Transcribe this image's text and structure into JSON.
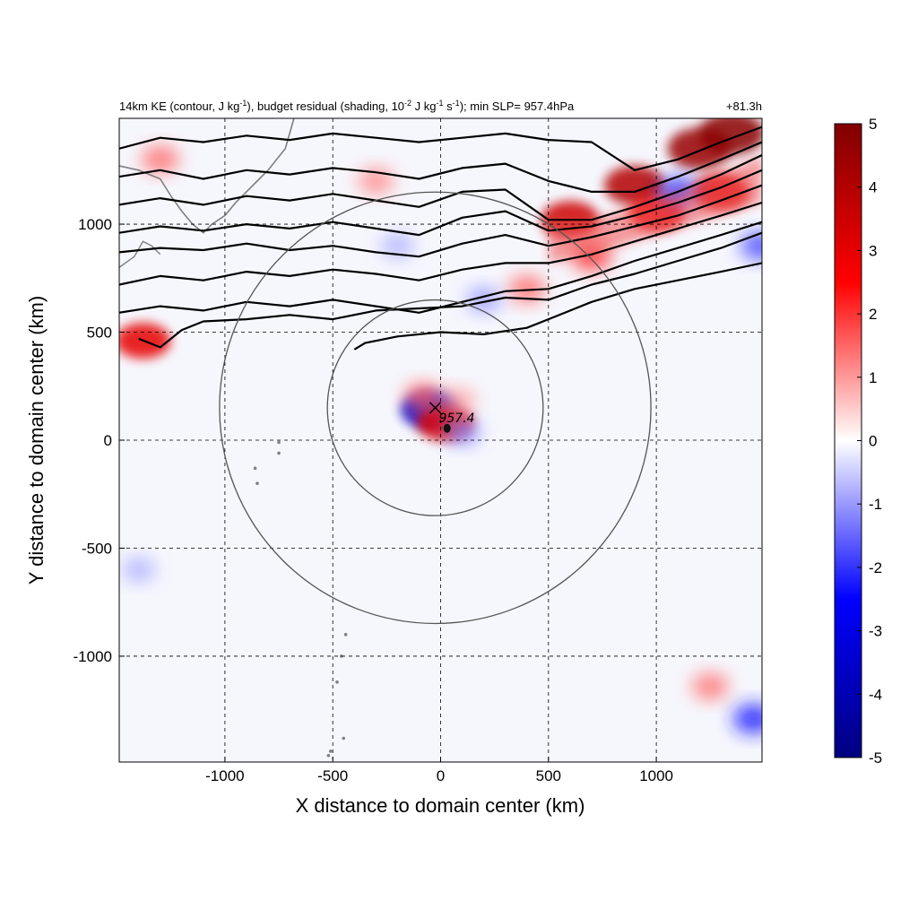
{
  "chart_data": {
    "type": "heatmap",
    "title": {
      "main": "14km KE (contour, J kg",
      "sup1": "-1",
      "mid1": "), budget residual (shading, 10",
      "sup2": "-2",
      "mid2": " J kg",
      "sup3": "-1",
      "mid3": " s",
      "sup4": "-1",
      "end": "); min SLP= 957.4hPa",
      "time": "+81.3h"
    },
    "xlabel": "X distance to domain center (km)",
    "ylabel": "Y distance to domain center (km)",
    "xlim": [
      -1490,
      1490
    ],
    "ylim": [
      -1490,
      1490
    ],
    "xticks": [
      -1000,
      -500,
      0,
      500,
      1000
    ],
    "yticks": [
      -1000,
      -500,
      0,
      500,
      1000
    ],
    "grid": "dashed",
    "colorbar": {
      "min": -5,
      "max": 5,
      "ticks": [
        5,
        4,
        3,
        2,
        1,
        0,
        -1,
        -2,
        -3,
        -4,
        -5
      ],
      "colors": [
        "#000080",
        "#0000ff",
        "#ffffff",
        "#ff0000",
        "#800000"
      ]
    },
    "storm_center": {
      "x": -25,
      "y": 150,
      "min_slp_label": "957.4"
    },
    "rings": [
      {
        "center_x": -25,
        "center_y": 150,
        "radius": 500
      },
      {
        "center_x": -25,
        "center_y": 150,
        "radius": 1000
      }
    ],
    "ke_contours": [
      {
        "x": [
          -1490,
          -1300,
          -1100,
          -900,
          -700,
          -500,
          -300,
          -100,
          100,
          300,
          500,
          700,
          900,
          1100,
          1300,
          1490
        ],
        "y": [
          1350,
          1400,
          1380,
          1410,
          1390,
          1420,
          1400,
          1380,
          1400,
          1420,
          1390,
          1380,
          1250,
          1300,
          1380,
          1450
        ]
      },
      {
        "x": [
          -1490,
          -1300,
          -1100,
          -900,
          -700,
          -500,
          -300,
          -100,
          100,
          300,
          500,
          700,
          900,
          1100,
          1300,
          1490
        ],
        "y": [
          1220,
          1250,
          1210,
          1250,
          1230,
          1260,
          1240,
          1210,
          1260,
          1280,
          1200,
          1150,
          1150,
          1220,
          1300,
          1380
        ]
      },
      {
        "x": [
          -1490,
          -1300,
          -1100,
          -900,
          -700,
          -500,
          -300,
          -100,
          100,
          300,
          500,
          700,
          900,
          1100,
          1300,
          1490
        ],
        "y": [
          1090,
          1120,
          1090,
          1130,
          1110,
          1140,
          1110,
          1080,
          1150,
          1160,
          1020,
          1020,
          1080,
          1150,
          1230,
          1320
        ]
      },
      {
        "x": [
          -1490,
          -1300,
          -1100,
          -900,
          -700,
          -500,
          -300,
          -100,
          100,
          300,
          500,
          700,
          900,
          1100,
          1300,
          1490
        ],
        "y": [
          960,
          990,
          970,
          1000,
          980,
          1010,
          980,
          950,
          1030,
          1060,
          970,
          990,
          1040,
          1100,
          1170,
          1250
        ]
      },
      {
        "x": [
          -1490,
          -1300,
          -1100,
          -900,
          -700,
          -500,
          -300,
          -100,
          100,
          300,
          500,
          700,
          900,
          1100,
          1300,
          1490
        ],
        "y": [
          870,
          890,
          880,
          910,
          880,
          900,
          870,
          850,
          910,
          950,
          900,
          940,
          990,
          1040,
          1110,
          1180
        ]
      },
      {
        "x": [
          -1490,
          -1300,
          -1100,
          -900,
          -700,
          -500,
          -300,
          -100,
          100,
          300,
          500,
          700,
          900,
          1100,
          1300,
          1490
        ],
        "y": [
          720,
          760,
          740,
          780,
          760,
          790,
          770,
          740,
          790,
          820,
          820,
          860,
          920,
          980,
          1040,
          1100
        ]
      },
      {
        "x": [
          -1490,
          -1300,
          -1100,
          -900,
          -700,
          -500,
          -300,
          -100,
          100,
          300,
          500,
          700,
          900,
          1100,
          1300,
          1490
        ],
        "y": [
          590,
          620,
          600,
          640,
          620,
          650,
          620,
          590,
          640,
          690,
          700,
          760,
          830,
          890,
          950,
          1010
        ]
      },
      {
        "x": [
          -1400,
          -1300,
          -1200,
          -1100,
          -900,
          -700,
          -500,
          -300,
          -100,
          100,
          300,
          500,
          700,
          900,
          1100,
          1300,
          1490
        ],
        "y": [
          470,
          430,
          510,
          550,
          560,
          580,
          560,
          600,
          610,
          620,
          660,
          650,
          720,
          770,
          830,
          890,
          960
        ]
      },
      {
        "x": [
          -400,
          -350,
          -200,
          0,
          200,
          400,
          500,
          700,
          900,
          1100,
          1300,
          1490
        ],
        "y": [
          420,
          450,
          480,
          500,
          490,
          520,
          560,
          640,
          700,
          740,
          780,
          820
        ]
      }
    ],
    "residual_features": [
      {
        "x": -50,
        "y": 140,
        "value": -3.5
      },
      {
        "x": 20,
        "y": 80,
        "value": 3.2
      },
      {
        "x": -80,
        "y": 200,
        "value": 1.6
      },
      {
        "x": 100,
        "y": 40,
        "value": -1.2
      },
      {
        "x": 80,
        "y": 180,
        "value": 1.0
      },
      {
        "x": -1380,
        "y": 460,
        "value": 3.0
      },
      {
        "x": 600,
        "y": 1020,
        "value": 3.5
      },
      {
        "x": 900,
        "y": 1180,
        "value": 4.0
      },
      {
        "x": 1200,
        "y": 1350,
        "value": 4.5
      },
      {
        "x": 1350,
        "y": 1420,
        "value": 4.8
      },
      {
        "x": 1000,
        "y": 1050,
        "value": 3.0
      },
      {
        "x": 1300,
        "y": 1150,
        "value": 3.2
      },
      {
        "x": 700,
        "y": 850,
        "value": 2.0
      },
      {
        "x": 400,
        "y": 700,
        "value": 1.5
      },
      {
        "x": -300,
        "y": 1200,
        "value": 1.2
      },
      {
        "x": -1300,
        "y": 1300,
        "value": 1.5
      },
      {
        "x": 1100,
        "y": 1150,
        "value": -2.0
      },
      {
        "x": 200,
        "y": 650,
        "value": -1.0
      },
      {
        "x": -200,
        "y": 900,
        "value": -0.8
      },
      {
        "x": 1450,
        "y": -1290,
        "value": -2.2
      },
      {
        "x": 1250,
        "y": -1140,
        "value": 1.4
      },
      {
        "x": -1400,
        "y": -600,
        "value": -0.8
      },
      {
        "x": 1480,
        "y": 900,
        "value": -1.8
      }
    ],
    "coastline_color": "#7f7f7f",
    "contour_color": "#000000",
    "ring_color": "#555555"
  }
}
